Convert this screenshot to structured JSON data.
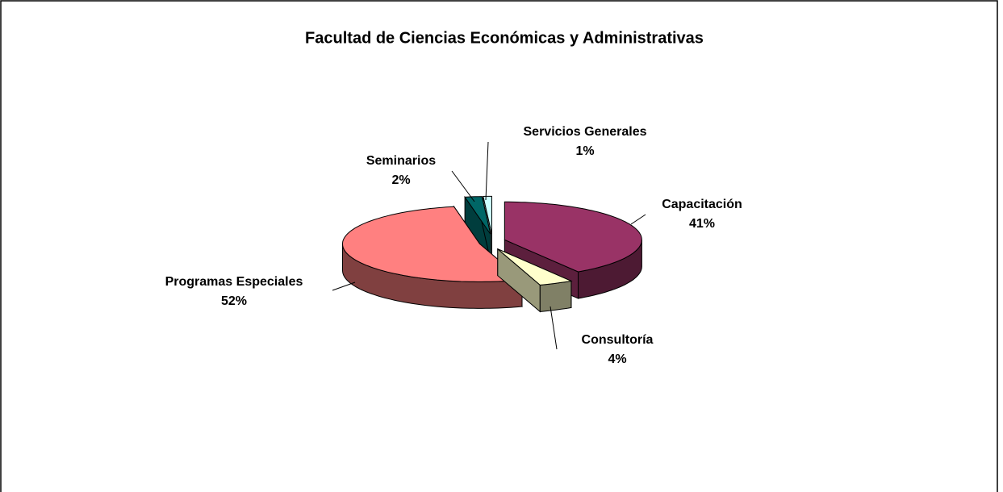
{
  "chart_data": {
    "type": "pie",
    "title": "Facultad de Ciencias Económicas y Administrativas",
    "categories": [
      "Capacitación",
      "Consultoría",
      "Programas Especiales",
      "Seminarios",
      "Servicios Generales"
    ],
    "values": [
      41,
      4,
      52,
      2,
      1
    ],
    "value_labels": [
      "41%",
      "4%",
      "52%",
      "2%",
      "1%"
    ],
    "colors": [
      "#993366",
      "#FFFFCC",
      "#FF8080",
      "#006666",
      "#CCFFFF"
    ]
  }
}
